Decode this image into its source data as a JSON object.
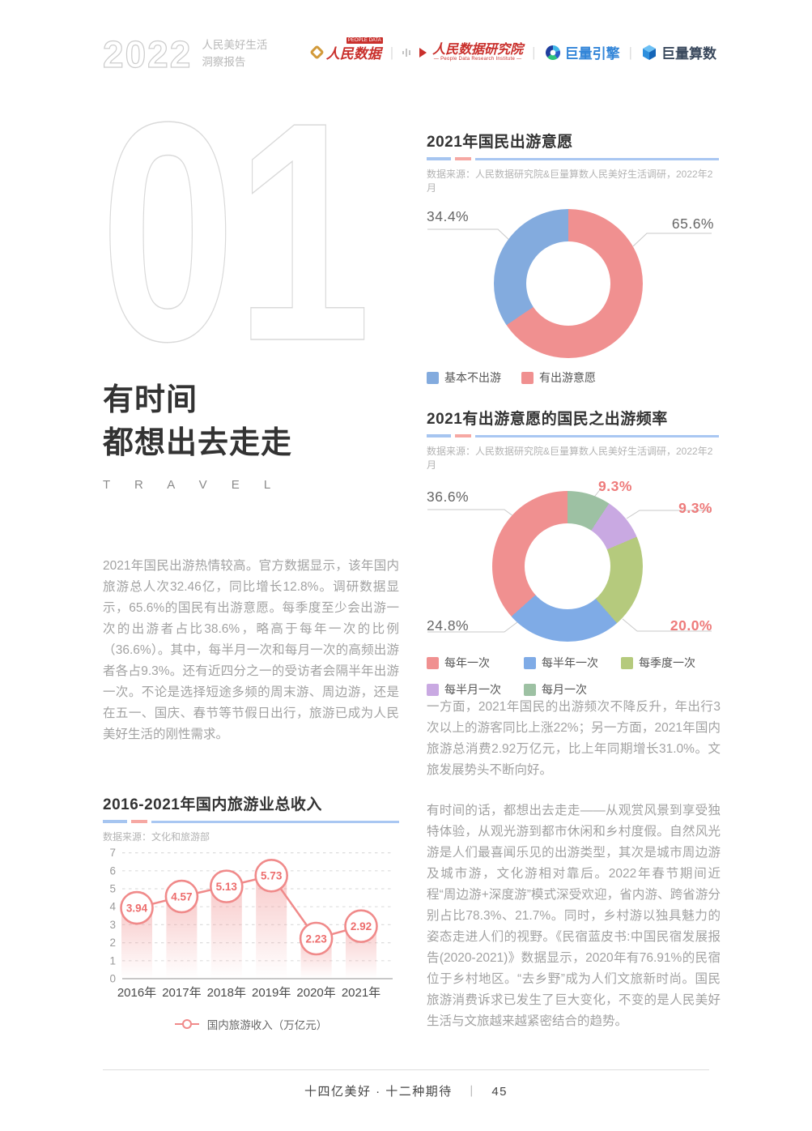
{
  "header": {
    "year": "2022",
    "report_title_line1": "人民美好生活",
    "report_title_line2": "洞察报告",
    "logos": [
      {
        "label": "人民数据",
        "badge": "PEOPLE DATA"
      },
      {
        "label": "人民数据研究院",
        "tagline": "— People Data Research Institute —"
      },
      {
        "label": "巨量引擎"
      },
      {
        "label": "巨量算数"
      }
    ]
  },
  "section": {
    "number": "01",
    "title_line1": "有时间",
    "title_line2": "都想出去走走",
    "label_en": "T R A V E L",
    "intro": "2021年国民出游热情较高。官方数据显示，该年国内旅游总人次32.46亿，同比增长12.8%。调研数据显示，65.6%的国民有出游意愿。每季度至少会出游一次的出游者占比38.6%，略高于每年一次的比例（36.6%）。其中，每半月一次和每月一次的高频出游者各占9.3%。还有近四分之一的受访者会隔半年出游一次。不论是选择短途多频的周末游、周边游，还是在五一、国庆、春节等节假日出行，旅游已成为人民美好生活的刚性需求。"
  },
  "paragraphs": {
    "right1": "一方面，2021年国民的出游频次不降反升，年出行3次以上的游客同比上涨22%；另一方面，2021年国内旅游总消费2.92万亿元，比上年同期增长31.0%。文旅发展势头不断向好。",
    "right2": "有时间的话，都想出去走走——从观赏风景到享受独特体验，从观光游到都市休闲和乡村度假。自然风光游是人们最喜闻乐见的出游类型，其次是城市周边游及城市游，文化游相对靠后。2022年春节期间近程“周边游+深度游”模式深受欢迎，省内游、跨省游分别占比78.3%、21.7%。同时，乡村游以独具魅力的姿态走进人们的视野。《民宿蓝皮书:中国民宿发展报告(2020-2021)》数据显示，2020年有76.91%的民宿位于乡村地区。“去乡野”成为人们文旅新时尚。国民旅游消费诉求已发生了巨大变化，不变的是人民美好生活与文旅越来越紧密结合的趋势。"
  },
  "chart_data": [
    {
      "id": "travel-willingness",
      "type": "pie",
      "donut": true,
      "title": "2021年国民出游意愿",
      "source": "数据来源：人民数据研究院&巨量算数人民美好生活调研，2022年2月",
      "slices": [
        {
          "label": "有出游意愿",
          "value": 65.6,
          "pct": "65.6%",
          "color": "#f09090"
        },
        {
          "label": "基本不出游",
          "value": 34.4,
          "pct": "34.4%",
          "color": "#83abde"
        }
      ],
      "legend_position": "bottom"
    },
    {
      "id": "travel-frequency",
      "type": "pie",
      "donut": true,
      "title": "2021有出游意愿的国民之出游频率",
      "source": "数据来源：人民数据研究院&巨量算数人民美好生活调研，2022年2月",
      "slices": [
        {
          "label": "每月一次",
          "value": 9.3,
          "pct": "9.3%",
          "color": "#9dc1a3"
        },
        {
          "label": "每半月一次",
          "value": 9.3,
          "pct": "9.3%",
          "color": "#c9a9e2"
        },
        {
          "label": "每季度一次",
          "value": 20.0,
          "pct": "20.0%",
          "color": "#b5ca7d"
        },
        {
          "label": "每半年一次",
          "value": 24.8,
          "pct": "24.8%",
          "color": "#7fabe6"
        },
        {
          "label": "每年一次",
          "value": 36.6,
          "pct": "36.6%",
          "color": "#f09090"
        }
      ],
      "legend_position": "bottom"
    },
    {
      "id": "domestic-tourism-revenue",
      "type": "line",
      "title": "2016-2021年国内旅游业总收入",
      "source": "数据来源：文化和旅游部",
      "categories": [
        "2016年",
        "2017年",
        "2018年",
        "2019年",
        "2020年",
        "2021年"
      ],
      "values": [
        3.94,
        4.57,
        5.13,
        5.73,
        2.23,
        2.92
      ],
      "series_name": "国内旅游收入（万亿元）",
      "ylim": [
        0,
        7
      ],
      "yticks": [
        0,
        1,
        2,
        3,
        4,
        5,
        6,
        7
      ],
      "grid": "dashed",
      "line_color": "#f08a8a"
    }
  ],
  "footer": {
    "tagline": "十四亿美好 · 十二种期待",
    "separator": "丨",
    "page_number": "45"
  }
}
